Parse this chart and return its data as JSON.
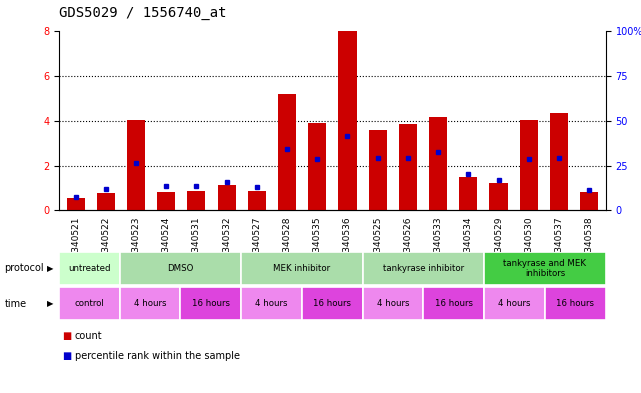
{
  "title": "GDS5029 / 1556740_at",
  "samples": [
    "GSM1340521",
    "GSM1340522",
    "GSM1340523",
    "GSM1340524",
    "GSM1340531",
    "GSM1340532",
    "GSM1340527",
    "GSM1340528",
    "GSM1340535",
    "GSM1340536",
    "GSM1340525",
    "GSM1340526",
    "GSM1340533",
    "GSM1340534",
    "GSM1340529",
    "GSM1340530",
    "GSM1340537",
    "GSM1340538"
  ],
  "count_values": [
    0.55,
    0.75,
    4.05,
    0.8,
    0.85,
    1.15,
    0.85,
    5.2,
    3.9,
    8.0,
    3.6,
    3.85,
    4.15,
    1.5,
    1.2,
    4.05,
    4.35,
    0.8
  ],
  "percentile_values": [
    0.58,
    0.95,
    2.1,
    1.1,
    1.1,
    1.25,
    1.05,
    2.75,
    2.3,
    3.3,
    2.35,
    2.35,
    2.6,
    1.6,
    1.35,
    2.3,
    2.35,
    0.9
  ],
  "ylim": [
    0,
    8
  ],
  "y2lim": [
    0,
    100
  ],
  "yticks": [
    0,
    2,
    4,
    6,
    8
  ],
  "y2ticks": [
    0,
    25,
    50,
    75,
    100
  ],
  "bar_color": "#cc0000",
  "percentile_color": "#0000cc",
  "grid_color": "#000000",
  "protocol_groups": [
    {
      "label": "untreated",
      "start": 0,
      "end": 2,
      "color": "#ccffcc"
    },
    {
      "label": "DMSO",
      "start": 2,
      "end": 6,
      "color": "#aaddaa"
    },
    {
      "label": "MEK inhibitor",
      "start": 6,
      "end": 10,
      "color": "#aaddaa"
    },
    {
      "label": "tankyrase inhibitor",
      "start": 10,
      "end": 14,
      "color": "#aaddaa"
    },
    {
      "label": "tankyrase and MEK\ninhibitors",
      "start": 14,
      "end": 18,
      "color": "#44cc44"
    }
  ],
  "time_groups": [
    {
      "label": "control",
      "start": 0,
      "end": 2,
      "color": "#ee88ee"
    },
    {
      "label": "4 hours",
      "start": 2,
      "end": 4,
      "color": "#ee88ee"
    },
    {
      "label": "16 hours",
      "start": 4,
      "end": 6,
      "color": "#dd44dd"
    },
    {
      "label": "4 hours",
      "start": 6,
      "end": 8,
      "color": "#ee88ee"
    },
    {
      "label": "16 hours",
      "start": 8,
      "end": 10,
      "color": "#dd44dd"
    },
    {
      "label": "4 hours",
      "start": 10,
      "end": 12,
      "color": "#ee88ee"
    },
    {
      "label": "16 hours",
      "start": 12,
      "end": 14,
      "color": "#dd44dd"
    },
    {
      "label": "4 hours",
      "start": 14,
      "end": 16,
      "color": "#ee88ee"
    },
    {
      "label": "16 hours",
      "start": 16,
      "end": 18,
      "color": "#dd44dd"
    }
  ],
  "title_fontsize": 10,
  "tick_fontsize": 7,
  "label_fontsize": 7,
  "bar_width": 0.6,
  "n_samples": 18
}
